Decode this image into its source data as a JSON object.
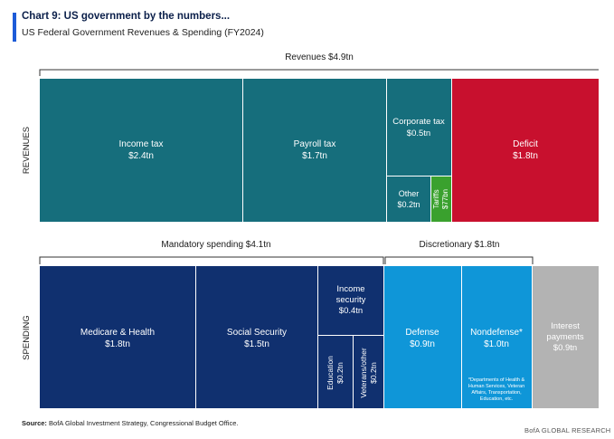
{
  "header": {
    "title": "Chart 9: US government by the numbers...",
    "subtitle": "US Federal Government Revenues & Spending (FY2024)"
  },
  "footer": {
    "source_label": "Source:",
    "source_text": "BofA Global Investment Strategy, Congressional Budget Office.",
    "brand": "BofA GLOBAL RESEARCH"
  },
  "colors": {
    "revenue": "#166e7c",
    "tariffs": "#3aa12e",
    "deficit": "#c8102e",
    "mandatory": "#10306f",
    "discretionary": "#0f96d8",
    "interest": "#b3b3b3",
    "bracket": "#333333"
  },
  "chart_data": {
    "type": "treemap",
    "unit": "$ trillions",
    "rows": [
      {
        "name": "REVENUES",
        "items": [
          {
            "name": "Income tax",
            "label": "Income tax",
            "value_label": "$2.4tn",
            "value": 2.4,
            "group": "revenue"
          },
          {
            "name": "Payroll tax",
            "label": "Payroll tax",
            "value_label": "$1.7tn",
            "value": 1.7,
            "group": "revenue"
          },
          {
            "name": "Corporate tax",
            "label": "Corporate tax",
            "value_label": "$0.5tn",
            "value": 0.5,
            "group": "revenue"
          },
          {
            "name": "Other",
            "label": "Other",
            "value_label": "$0.2tn",
            "value": 0.2,
            "group": "revenue"
          },
          {
            "name": "Tariffs",
            "label": "Tariffs",
            "value_label": "$77bn",
            "value": 0.077,
            "group": "tariffs"
          },
          {
            "name": "Deficit",
            "label": "Deficit",
            "value_label": "$1.8tn",
            "value": 1.8,
            "group": "deficit"
          }
        ],
        "brackets": [
          {
            "label": "Revenues $4.9tn",
            "value": 4.9
          }
        ]
      },
      {
        "name": "SPENDING",
        "items": [
          {
            "name": "Medicare & Health",
            "label": "Medicare & Health",
            "value_label": "$1.8tn",
            "value": 1.8,
            "group": "mandatory"
          },
          {
            "name": "Social Security",
            "label": "Social Security",
            "value_label": "$1.5tn",
            "value": 1.5,
            "group": "mandatory"
          },
          {
            "name": "Income security",
            "label_lines": [
              "Income",
              "security"
            ],
            "value_label": "$0.4tn",
            "value": 0.4,
            "group": "mandatory"
          },
          {
            "name": "Education",
            "label": "Education",
            "value_label": "$0.2tn",
            "value": 0.2,
            "group": "mandatory"
          },
          {
            "name": "Veterans/other",
            "label": "Veterans/other",
            "value_label": "$0.2tn",
            "value": 0.2,
            "group": "mandatory"
          },
          {
            "name": "Defense",
            "label": "Defense",
            "value_label": "$0.9tn",
            "value": 0.9,
            "group": "discretionary"
          },
          {
            "name": "Nondefense",
            "label": "Nondefense*",
            "value_label": "$1.0tn",
            "value": 1.0,
            "group": "discretionary",
            "note_lines": [
              "*Departments of Health &",
              "Human Services, Veteran",
              "Affairs, Transportation,",
              "Education, etc."
            ]
          },
          {
            "name": "Interest payments",
            "label_lines": [
              "Interest",
              "payments"
            ],
            "value_label": "$0.9tn",
            "value": 0.9,
            "group": "interest"
          }
        ],
        "brackets": [
          {
            "label": "Mandatory spending $4.1tn",
            "value": 4.1
          },
          {
            "label": "Discretionary $1.8tn",
            "value": 1.8
          }
        ]
      }
    ]
  }
}
